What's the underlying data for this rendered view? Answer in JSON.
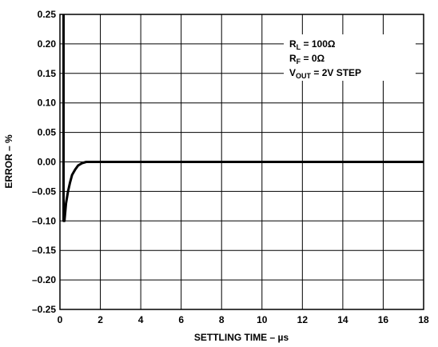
{
  "chart_data": {
    "type": "line",
    "xlabel": "SETTLING TIME – µs",
    "ylabel": "ERROR – %",
    "xlim": [
      0,
      18
    ],
    "ylim": [
      -0.25,
      0.25
    ],
    "x_ticks": [
      "0",
      "2",
      "4",
      "6",
      "8",
      "10",
      "12",
      "14",
      "16",
      "18"
    ],
    "y_ticks": [
      "0.25",
      "0.20",
      "0.15",
      "0.10",
      "0.05",
      "0.00",
      "–0.05",
      "–0.10",
      "–0.15",
      "–0.20",
      "–0.25"
    ],
    "grid": true,
    "annotations": [
      {
        "main": "R",
        "sub": "L",
        "rest": " = 100Ω"
      },
      {
        "main": "R",
        "sub": "F",
        "rest": " = 0Ω"
      },
      {
        "main": "V",
        "sub": "OUT",
        "rest": " = 2V STEP"
      }
    ],
    "series": [
      {
        "x": [
          0.18,
          0.18,
          0.22,
          0.25,
          0.3,
          0.4,
          0.5,
          0.6,
          0.75,
          0.9,
          1.1,
          1.3,
          1.5,
          2.0,
          4.0,
          8.0,
          12.0,
          16.0,
          18.0
        ],
        "y": [
          0.25,
          -0.1,
          -0.1,
          -0.09,
          -0.07,
          -0.05,
          -0.035,
          -0.022,
          -0.013,
          -0.006,
          -0.002,
          0.0,
          0.0,
          0.0,
          0.0,
          0.0,
          0.0,
          0.0,
          0.0
        ]
      }
    ]
  }
}
